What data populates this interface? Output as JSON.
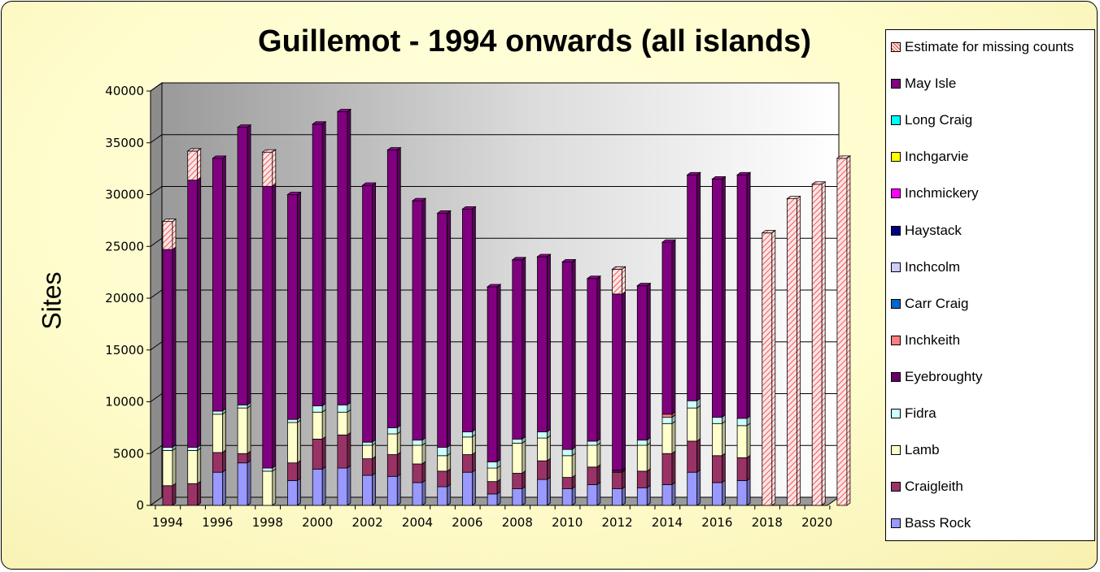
{
  "chart_data": {
    "type": "bar",
    "stacked": true,
    "three_d": true,
    "title": "Guillemot - 1994 onwards (all islands)",
    "xlabel": "",
    "ylabel": "Sites",
    "ylim": [
      0,
      40000
    ],
    "yticks": [
      0,
      5000,
      10000,
      15000,
      20000,
      25000,
      30000,
      35000,
      40000
    ],
    "ytick_labels": [
      "0",
      "5000",
      "10000",
      "15000",
      "20000",
      "25000",
      "30000",
      "35000",
      "40000"
    ],
    "grid": true,
    "legend_position": "right",
    "categories": [
      "1994",
      "1995",
      "1996",
      "1997",
      "1998",
      "1999",
      "2000",
      "2001",
      "2002",
      "2003",
      "2004",
      "2005",
      "2006",
      "2007",
      "2008",
      "2009",
      "2010",
      "2011",
      "2012",
      "2013",
      "2014",
      "2015",
      "2016",
      "2017",
      "2018",
      "2019",
      "2020",
      "2021"
    ],
    "xtick_labels": [
      "1994",
      "1996",
      "1998",
      "2000",
      "2002",
      "2004",
      "2006",
      "2008",
      "2010",
      "2012",
      "2014",
      "2016",
      "2018",
      "2020"
    ],
    "series": [
      {
        "name": "Bass Rock",
        "color": "#9999ff",
        "values": [
          0,
          0,
          3200,
          4100,
          0,
          2400,
          3500,
          3600,
          2900,
          2800,
          2200,
          1800,
          3200,
          1100,
          1600,
          2500,
          1600,
          2000,
          1600,
          1700,
          2000,
          3200,
          2200,
          2400,
          0,
          0,
          0,
          0
        ]
      },
      {
        "name": "Craigleith",
        "color": "#993366",
        "values": [
          1900,
          2100,
          1900,
          900,
          0,
          1700,
          2900,
          3200,
          1600,
          2100,
          1800,
          1500,
          1700,
          1200,
          1500,
          1800,
          1100,
          1700,
          1600,
          1600,
          3000,
          3000,
          2600,
          2200,
          0,
          0,
          0,
          0
        ]
      },
      {
        "name": "Lamb",
        "color": "#ffffcc",
        "values": [
          3400,
          3200,
          3700,
          4400,
          3300,
          3900,
          2600,
          2200,
          1300,
          2000,
          1800,
          1500,
          1700,
          1300,
          2900,
          2200,
          2100,
          2100,
          0,
          2500,
          2900,
          3200,
          3100,
          3100,
          0,
          0,
          0,
          0
        ]
      },
      {
        "name": "Fidra",
        "color": "#ccffff",
        "values": [
          300,
          300,
          300,
          300,
          300,
          300,
          600,
          700,
          300,
          600,
          500,
          800,
          500,
          600,
          400,
          600,
          600,
          400,
          0,
          500,
          600,
          700,
          600,
          700,
          0,
          0,
          0,
          0
        ]
      },
      {
        "name": "Eyebroughty",
        "color": "#660066",
        "values": [
          0,
          0,
          0,
          0,
          0,
          0,
          0,
          0,
          0,
          0,
          0,
          0,
          0,
          0,
          0,
          0,
          0,
          0,
          200,
          0,
          0,
          0,
          0,
          0,
          0,
          0,
          0,
          0
        ]
      },
      {
        "name": "Inchkeith",
        "color": "#ff8080",
        "values": [
          0,
          0,
          0,
          0,
          0,
          0,
          0,
          0,
          0,
          0,
          0,
          0,
          0,
          0,
          0,
          0,
          0,
          0,
          0,
          0,
          300,
          0,
          0,
          0,
          0,
          0,
          0,
          0
        ]
      },
      {
        "name": "Carr Craig",
        "color": "#0066cc",
        "values": [
          0,
          0,
          0,
          0,
          0,
          0,
          0,
          0,
          0,
          0,
          0,
          0,
          0,
          0,
          0,
          0,
          0,
          0,
          0,
          0,
          0,
          0,
          0,
          0,
          0,
          0,
          0,
          0
        ]
      },
      {
        "name": "Inchcolm",
        "color": "#ccccff",
        "values": [
          0,
          0,
          0,
          0,
          0,
          0,
          0,
          0,
          0,
          0,
          0,
          0,
          0,
          0,
          0,
          0,
          0,
          0,
          0,
          0,
          0,
          0,
          0,
          0,
          0,
          0,
          0,
          0
        ]
      },
      {
        "name": "Haystack",
        "color": "#000080",
        "values": [
          0,
          0,
          0,
          0,
          0,
          0,
          0,
          0,
          0,
          0,
          0,
          0,
          0,
          0,
          0,
          0,
          0,
          0,
          0,
          0,
          0,
          0,
          0,
          0,
          0,
          0,
          0,
          0
        ]
      },
      {
        "name": "Inchmickery",
        "color": "#ff00ff",
        "values": [
          0,
          0,
          0,
          0,
          0,
          0,
          0,
          0,
          0,
          0,
          0,
          0,
          0,
          0,
          0,
          0,
          0,
          0,
          0,
          0,
          0,
          0,
          0,
          0,
          0,
          0,
          0,
          0
        ]
      },
      {
        "name": "Inchgarvie",
        "color": "#ffff00",
        "values": [
          0,
          0,
          0,
          0,
          0,
          0,
          0,
          0,
          0,
          0,
          0,
          0,
          0,
          0,
          0,
          0,
          0,
          0,
          0,
          0,
          0,
          0,
          0,
          0,
          0,
          0,
          0,
          0
        ]
      },
      {
        "name": "Long Craig",
        "color": "#00ffff",
        "values": [
          0,
          0,
          0,
          0,
          0,
          0,
          0,
          0,
          0,
          0,
          0,
          0,
          0,
          0,
          0,
          0,
          0,
          0,
          0,
          0,
          0,
          0,
          0,
          0,
          0,
          0,
          0,
          0
        ]
      },
      {
        "name": "May Isle",
        "color": "#800080",
        "values": [
          19100,
          25800,
          24400,
          26800,
          27200,
          21700,
          27200,
          28300,
          24800,
          26800,
          23100,
          22600,
          21500,
          16900,
          17300,
          16900,
          18100,
          15700,
          17000,
          14900,
          16600,
          21800,
          23000,
          23500,
          0,
          0,
          0,
          0
        ]
      },
      {
        "name": "Estimate for missing counts",
        "color": "#ffcccc",
        "pattern": "hatch",
        "values": [
          2700,
          2800,
          0,
          0,
          3300,
          0,
          0,
          0,
          0,
          0,
          0,
          0,
          0,
          0,
          0,
          0,
          0,
          0,
          2400,
          0,
          0,
          0,
          0,
          0,
          26300,
          29600,
          31000,
          33500
        ]
      }
    ]
  }
}
